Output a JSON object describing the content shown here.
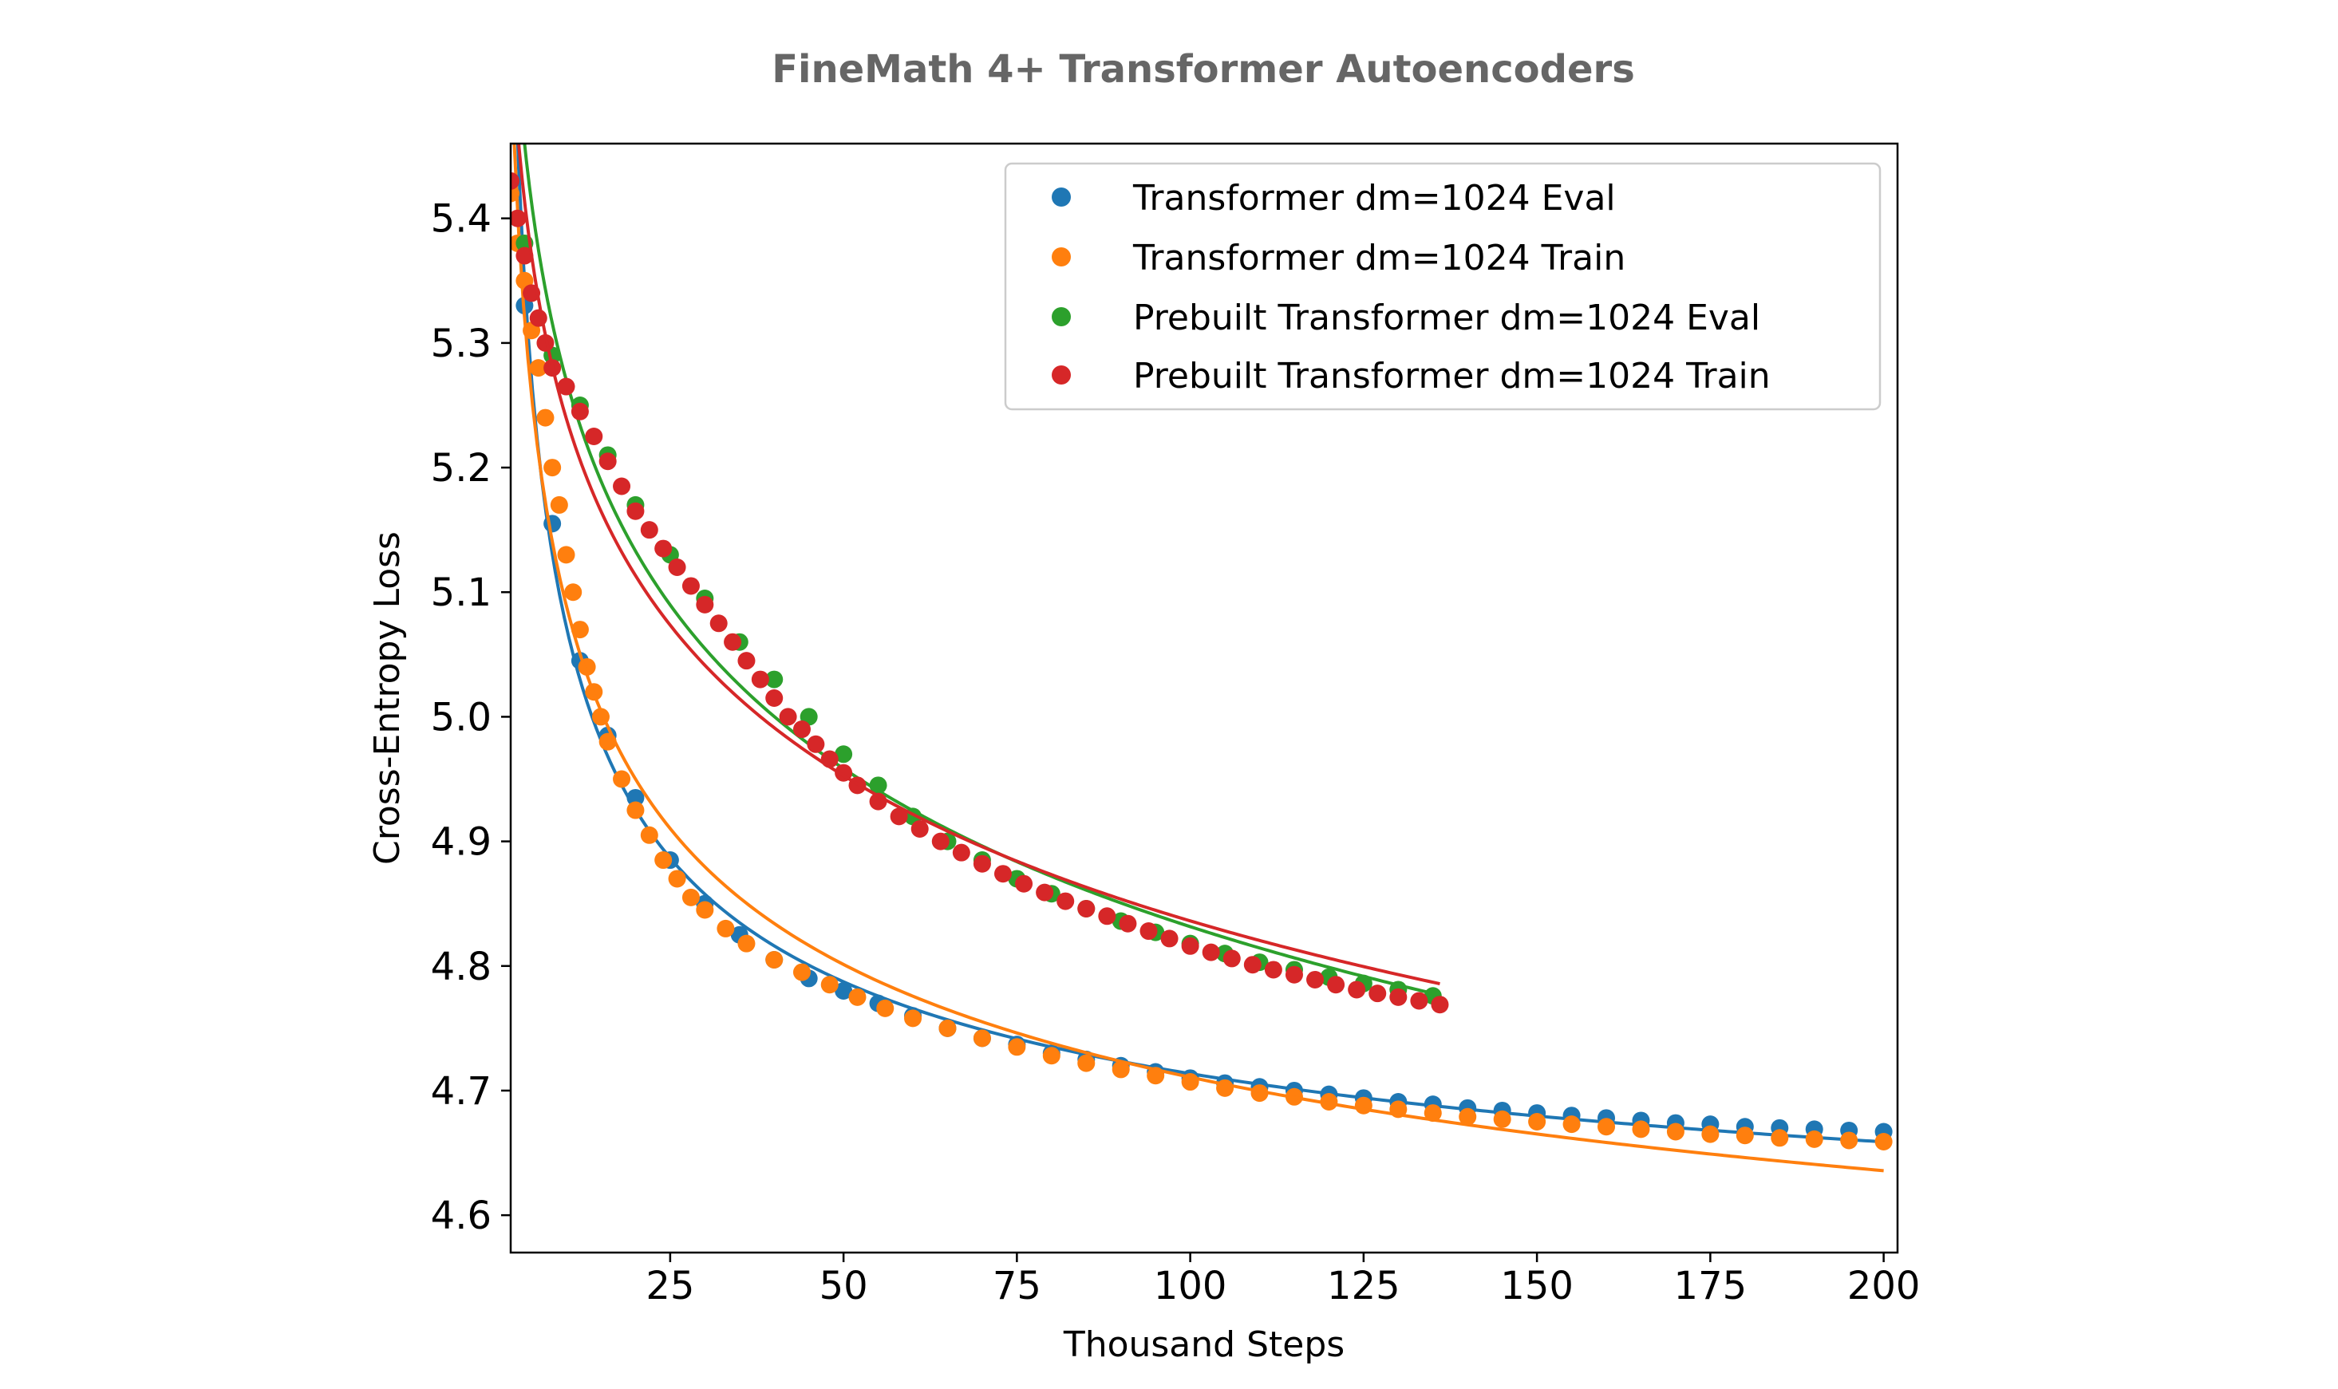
{
  "chart_data": {
    "type": "scatter",
    "title": "FineMath 4+ Transformer Autoencoders",
    "xlabel": "Thousand Steps",
    "ylabel": "Cross-Entropy Loss",
    "xlim": [
      2,
      202
    ],
    "ylim": [
      4.57,
      5.46
    ],
    "xticks": [
      25,
      50,
      75,
      100,
      125,
      150,
      175,
      200
    ],
    "yticks": [
      4.6,
      4.7,
      4.8,
      4.9,
      5.0,
      5.1,
      5.2,
      5.3,
      5.4
    ],
    "grid": false,
    "legend_position": "top-right",
    "series": [
      {
        "name": "Transformer dm=1024 Eval",
        "color": "#1f77b4",
        "fit": true,
        "points": [
          [
            4,
            5.33
          ],
          [
            8,
            5.155
          ],
          [
            12,
            5.045
          ],
          [
            16,
            4.985
          ],
          [
            20,
            4.935
          ],
          [
            25,
            4.885
          ],
          [
            30,
            4.85
          ],
          [
            35,
            4.825
          ],
          [
            40,
            4.805
          ],
          [
            45,
            4.79
          ],
          [
            50,
            4.78
          ],
          [
            55,
            4.77
          ],
          [
            60,
            4.76
          ],
          [
            65,
            4.75
          ],
          [
            70,
            4.742
          ],
          [
            75,
            4.737
          ],
          [
            80,
            4.73
          ],
          [
            85,
            4.725
          ],
          [
            90,
            4.72
          ],
          [
            95,
            4.715
          ],
          [
            100,
            4.71
          ],
          [
            105,
            4.706
          ],
          [
            110,
            4.703
          ],
          [
            115,
            4.7
          ],
          [
            120,
            4.697
          ],
          [
            125,
            4.694
          ],
          [
            130,
            4.691
          ],
          [
            135,
            4.689
          ],
          [
            140,
            4.686
          ],
          [
            145,
            4.684
          ],
          [
            150,
            4.682
          ],
          [
            155,
            4.68
          ],
          [
            160,
            4.678
          ],
          [
            165,
            4.676
          ],
          [
            170,
            4.674
          ],
          [
            175,
            4.673
          ],
          [
            180,
            4.671
          ],
          [
            185,
            4.67
          ],
          [
            190,
            4.669
          ],
          [
            195,
            4.668
          ],
          [
            200,
            4.667
          ]
        ]
      },
      {
        "name": "Transformer dm=1024 Train",
        "color": "#ff7f0e",
        "fit": true,
        "points": [
          [
            2,
            5.42
          ],
          [
            3,
            5.38
          ],
          [
            4,
            5.35
          ],
          [
            5,
            5.31
          ],
          [
            6,
            5.28
          ],
          [
            7,
            5.24
          ],
          [
            8,
            5.2
          ],
          [
            9,
            5.17
          ],
          [
            10,
            5.13
          ],
          [
            11,
            5.1
          ],
          [
            12,
            5.07
          ],
          [
            13,
            5.04
          ],
          [
            14,
            5.02
          ],
          [
            15,
            5.0
          ],
          [
            16,
            4.98
          ],
          [
            18,
            4.95
          ],
          [
            20,
            4.925
          ],
          [
            22,
            4.905
          ],
          [
            24,
            4.885
          ],
          [
            26,
            4.87
          ],
          [
            28,
            4.855
          ],
          [
            30,
            4.845
          ],
          [
            33,
            4.83
          ],
          [
            36,
            4.818
          ],
          [
            40,
            4.805
          ],
          [
            44,
            4.795
          ],
          [
            48,
            4.785
          ],
          [
            52,
            4.775
          ],
          [
            56,
            4.766
          ],
          [
            60,
            4.758
          ],
          [
            65,
            4.75
          ],
          [
            70,
            4.742
          ],
          [
            75,
            4.735
          ],
          [
            80,
            4.728
          ],
          [
            85,
            4.722
          ],
          [
            90,
            4.717
          ],
          [
            95,
            4.712
          ],
          [
            100,
            4.707
          ],
          [
            105,
            4.702
          ],
          [
            110,
            4.698
          ],
          [
            115,
            4.695
          ],
          [
            120,
            4.691
          ],
          [
            125,
            4.688
          ],
          [
            130,
            4.685
          ],
          [
            135,
            4.682
          ],
          [
            140,
            4.679
          ],
          [
            145,
            4.677
          ],
          [
            150,
            4.675
          ],
          [
            155,
            4.673
          ],
          [
            160,
            4.671
          ],
          [
            165,
            4.669
          ],
          [
            170,
            4.667
          ],
          [
            175,
            4.665
          ],
          [
            180,
            4.664
          ],
          [
            185,
            4.662
          ],
          [
            190,
            4.661
          ],
          [
            195,
            4.66
          ],
          [
            200,
            4.659
          ]
        ]
      },
      {
        "name": "Prebuilt Transformer dm=1024 Eval",
        "color": "#2ca02c",
        "fit": true,
        "points": [
          [
            4,
            5.38
          ],
          [
            8,
            5.29
          ],
          [
            12,
            5.25
          ],
          [
            16,
            5.21
          ],
          [
            20,
            5.17
          ],
          [
            25,
            5.13
          ],
          [
            30,
            5.095
          ],
          [
            35,
            5.06
          ],
          [
            40,
            5.03
          ],
          [
            45,
            5.0
          ],
          [
            50,
            4.97
          ],
          [
            55,
            4.945
          ],
          [
            60,
            4.92
          ],
          [
            65,
            4.9
          ],
          [
            70,
            4.885
          ],
          [
            75,
            4.87
          ],
          [
            80,
            4.858
          ],
          [
            85,
            4.846
          ],
          [
            90,
            4.836
          ],
          [
            95,
            4.827
          ],
          [
            100,
            4.818
          ],
          [
            105,
            4.81
          ],
          [
            110,
            4.803
          ],
          [
            115,
            4.797
          ],
          [
            120,
            4.791
          ],
          [
            125,
            4.786
          ],
          [
            130,
            4.781
          ],
          [
            135,
            4.776
          ]
        ]
      },
      {
        "name": "Prebuilt Transformer dm=1024 Train",
        "color": "#d62728",
        "fit": true,
        "points": [
          [
            2,
            5.43
          ],
          [
            3,
            5.4
          ],
          [
            4,
            5.37
          ],
          [
            5,
            5.34
          ],
          [
            6,
            5.32
          ],
          [
            7,
            5.3
          ],
          [
            8,
            5.28
          ],
          [
            10,
            5.265
          ],
          [
            12,
            5.245
          ],
          [
            14,
            5.225
          ],
          [
            16,
            5.205
          ],
          [
            18,
            5.185
          ],
          [
            20,
            5.165
          ],
          [
            22,
            5.15
          ],
          [
            24,
            5.135
          ],
          [
            26,
            5.12
          ],
          [
            28,
            5.105
          ],
          [
            30,
            5.09
          ],
          [
            32,
            5.075
          ],
          [
            34,
            5.06
          ],
          [
            36,
            5.045
          ],
          [
            38,
            5.03
          ],
          [
            40,
            5.015
          ],
          [
            42,
            5.0
          ],
          [
            44,
            4.99
          ],
          [
            46,
            4.978
          ],
          [
            48,
            4.966
          ],
          [
            50,
            4.955
          ],
          [
            52,
            4.945
          ],
          [
            55,
            4.932
          ],
          [
            58,
            4.92
          ],
          [
            61,
            4.91
          ],
          [
            64,
            4.9
          ],
          [
            67,
            4.891
          ],
          [
            70,
            4.882
          ],
          [
            73,
            4.874
          ],
          [
            76,
            4.866
          ],
          [
            79,
            4.859
          ],
          [
            82,
            4.852
          ],
          [
            85,
            4.846
          ],
          [
            88,
            4.84
          ],
          [
            91,
            4.834
          ],
          [
            94,
            4.828
          ],
          [
            97,
            4.822
          ],
          [
            100,
            4.816
          ],
          [
            103,
            4.811
          ],
          [
            106,
            4.806
          ],
          [
            109,
            4.801
          ],
          [
            112,
            4.797
          ],
          [
            115,
            4.793
          ],
          [
            118,
            4.789
          ],
          [
            121,
            4.785
          ],
          [
            124,
            4.781
          ],
          [
            127,
            4.778
          ],
          [
            130,
            4.775
          ],
          [
            133,
            4.772
          ],
          [
            136,
            4.769
          ]
        ]
      }
    ]
  }
}
